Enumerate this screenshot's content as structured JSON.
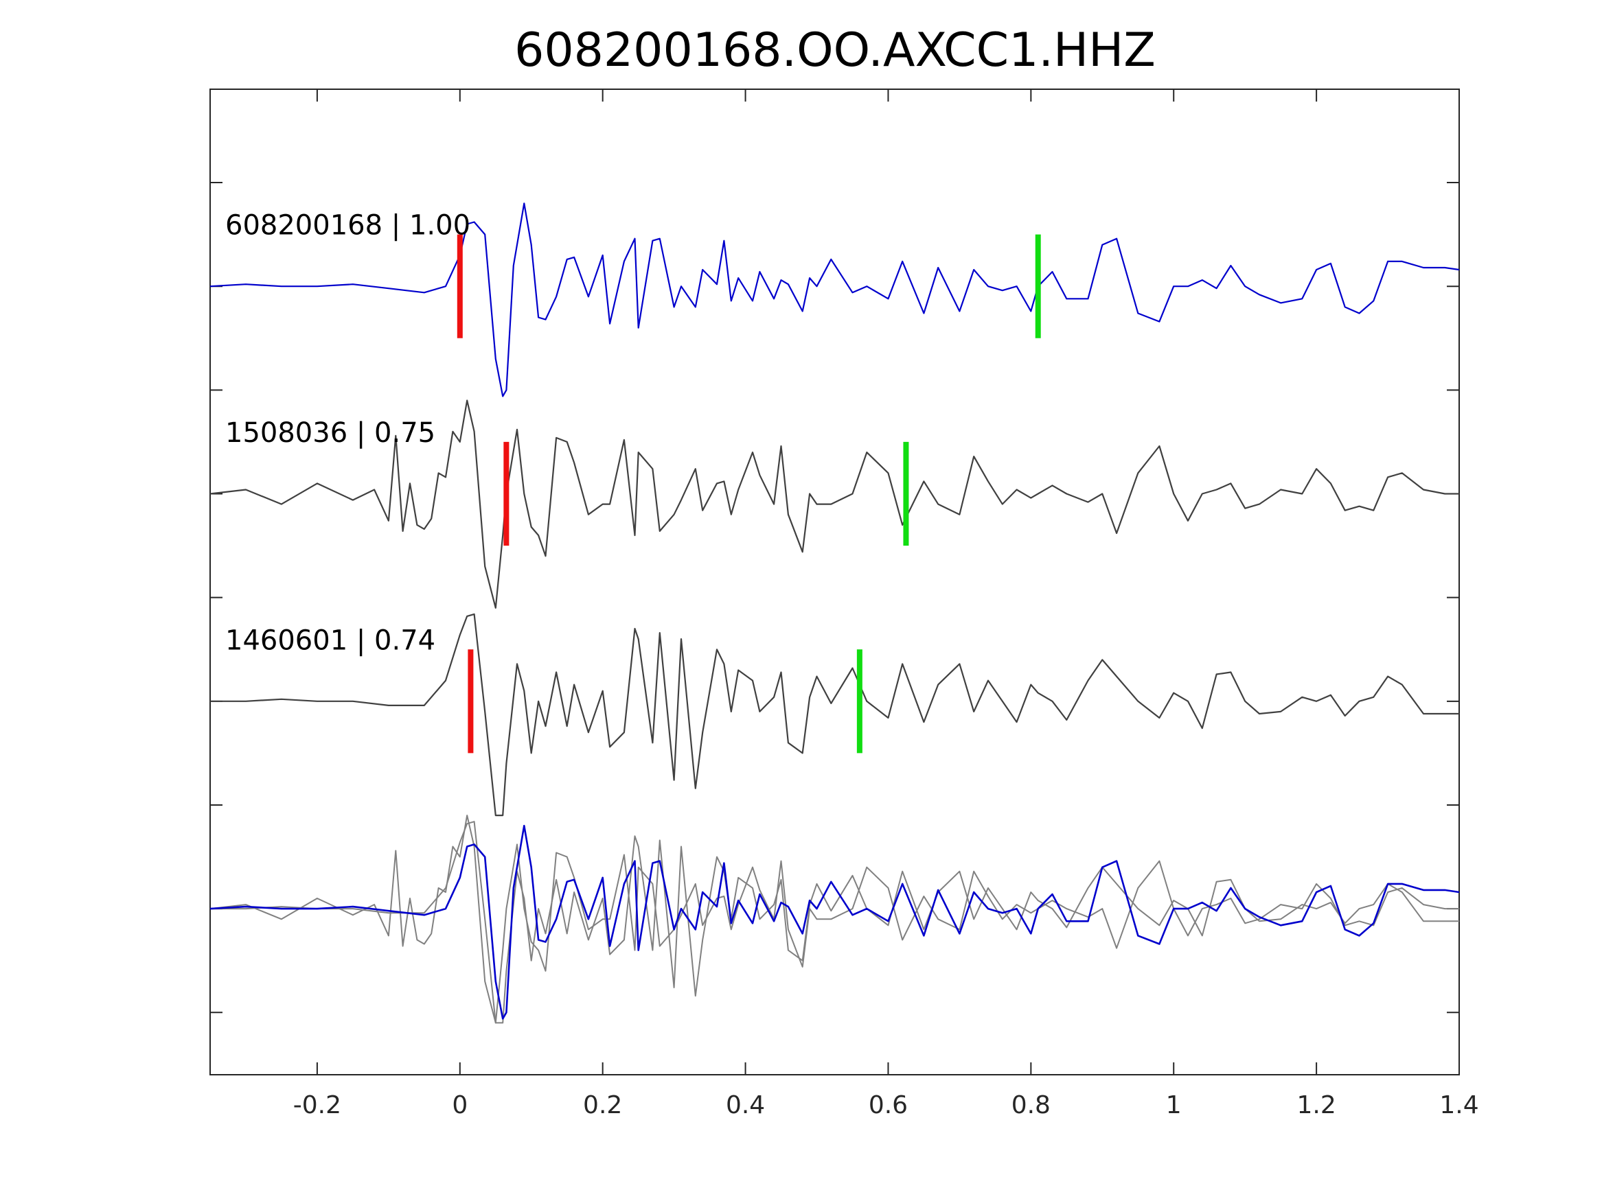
{
  "chart_data": {
    "type": "line",
    "title": "608200168.OO.AXCC1.HHZ",
    "xlabel": "",
    "ylabel": "",
    "xlim": [
      -0.35,
      1.4
    ],
    "xticks": [
      -0.2,
      0,
      0.2,
      0.4,
      0.6,
      0.8,
      1,
      1.2,
      1.4
    ],
    "xtick_labels": [
      "-0.2",
      "0",
      "0.2",
      "0.4",
      "0.6",
      "0.8",
      "1",
      "1.2",
      "1.4"
    ],
    "ylim": [
      -3.8,
      0.95
    ],
    "yticks": [
      0.5,
      0,
      -0.5,
      -1,
      -1.5,
      -2,
      -2.5,
      -3,
      -3.5
    ],
    "grid": false,
    "colors": {
      "master": "#0000cc",
      "trace": "#404040",
      "overlay_gray": "#808080",
      "pick_p": "#ee1111",
      "pick_s": "#11dd11",
      "axes": "#262626"
    },
    "series": [
      {
        "label": "608200168 | 1.00",
        "offset": 0,
        "color": "#0000cc",
        "p_pick": 0.0,
        "s_pick": 0.81,
        "x": [
          -0.35,
          -0.3,
          -0.25,
          -0.2,
          -0.15,
          -0.1,
          -0.05,
          -0.02,
          0.0,
          0.01,
          0.02,
          0.035,
          0.05,
          0.06,
          0.065,
          0.075,
          0.09,
          0.1,
          0.11,
          0.12,
          0.135,
          0.15,
          0.16,
          0.18,
          0.2,
          0.21,
          0.23,
          0.245,
          0.25,
          0.27,
          0.28,
          0.3,
          0.31,
          0.33,
          0.34,
          0.36,
          0.37,
          0.38,
          0.39,
          0.41,
          0.42,
          0.44,
          0.45,
          0.46,
          0.48,
          0.49,
          0.5,
          0.52,
          0.55,
          0.57,
          0.6,
          0.62,
          0.65,
          0.67,
          0.7,
          0.72,
          0.74,
          0.76,
          0.78,
          0.8,
          0.81,
          0.83,
          0.85,
          0.88,
          0.9,
          0.92,
          0.95,
          0.98,
          1.0,
          1.02,
          1.04,
          1.06,
          1.08,
          1.1,
          1.12,
          1.15,
          1.18,
          1.2,
          1.22,
          1.24,
          1.26,
          1.28,
          1.3,
          1.32,
          1.35,
          1.38,
          1.4
        ],
        "y": [
          0.0,
          0.01,
          0.0,
          0.0,
          0.01,
          -0.01,
          -0.03,
          0.0,
          0.15,
          0.3,
          0.31,
          0.25,
          -0.35,
          -0.53,
          -0.5,
          0.1,
          0.4,
          0.2,
          -0.15,
          -0.16,
          -0.05,
          0.13,
          0.14,
          -0.05,
          0.15,
          -0.18,
          0.12,
          0.23,
          -0.2,
          0.22,
          0.23,
          -0.1,
          0.0,
          -0.1,
          0.08,
          0.01,
          0.22,
          -0.07,
          0.04,
          -0.07,
          0.07,
          -0.06,
          0.03,
          0.01,
          -0.12,
          0.04,
          0.0,
          0.13,
          -0.03,
          0.0,
          -0.06,
          0.12,
          -0.13,
          0.09,
          -0.12,
          0.08,
          0.0,
          -0.02,
          0.0,
          -0.12,
          0.0,
          0.07,
          -0.06,
          -0.06,
          0.2,
          0.23,
          -0.13,
          -0.17,
          0.0,
          0.0,
          0.03,
          -0.01,
          0.1,
          0.0,
          -0.04,
          -0.08,
          -0.06,
          0.08,
          0.11,
          -0.1,
          -0.13,
          -0.07,
          0.12,
          0.12,
          0.09,
          0.09,
          0.08
        ]
      },
      {
        "label": "1508036 | 0.75",
        "offset": -1,
        "color": "#404040",
        "p_pick": 0.065,
        "s_pick": 0.625,
        "x": [
          -0.35,
          -0.3,
          -0.25,
          -0.2,
          -0.15,
          -0.12,
          -0.1,
          -0.09,
          -0.08,
          -0.07,
          -0.06,
          -0.05,
          -0.04,
          -0.03,
          -0.02,
          -0.01,
          0.0,
          0.01,
          0.02,
          0.035,
          0.05,
          0.06,
          0.065,
          0.08,
          0.09,
          0.1,
          0.11,
          0.12,
          0.135,
          0.15,
          0.16,
          0.18,
          0.2,
          0.21,
          0.23,
          0.245,
          0.25,
          0.27,
          0.28,
          0.3,
          0.31,
          0.33,
          0.34,
          0.36,
          0.37,
          0.38,
          0.39,
          0.41,
          0.42,
          0.44,
          0.45,
          0.46,
          0.48,
          0.49,
          0.5,
          0.52,
          0.55,
          0.57,
          0.6,
          0.62,
          0.65,
          0.67,
          0.7,
          0.72,
          0.74,
          0.76,
          0.78,
          0.8,
          0.81,
          0.83,
          0.85,
          0.88,
          0.9,
          0.92,
          0.95,
          0.98,
          1.0,
          1.02,
          1.04,
          1.06,
          1.08,
          1.1,
          1.12,
          1.15,
          1.18,
          1.2,
          1.22,
          1.24,
          1.26,
          1.28,
          1.3,
          1.32,
          1.35,
          1.38,
          1.4
        ],
        "y": [
          0.0,
          0.02,
          -0.05,
          0.05,
          -0.03,
          0.02,
          -0.13,
          0.28,
          -0.18,
          0.05,
          -0.15,
          -0.17,
          -0.12,
          0.1,
          0.08,
          0.3,
          0.25,
          0.45,
          0.3,
          -0.35,
          -0.55,
          -0.2,
          0.0,
          0.31,
          0.0,
          -0.16,
          -0.2,
          -0.3,
          0.27,
          0.25,
          0.15,
          -0.1,
          -0.05,
          -0.05,
          0.26,
          -0.2,
          0.2,
          0.12,
          -0.18,
          -0.1,
          -0.03,
          0.12,
          -0.08,
          0.05,
          0.06,
          -0.1,
          0.02,
          0.2,
          0.09,
          -0.05,
          0.23,
          -0.1,
          -0.28,
          0.0,
          -0.05,
          -0.05,
          0.0,
          0.2,
          0.1,
          -0.15,
          0.06,
          -0.05,
          -0.1,
          0.18,
          0.06,
          -0.05,
          0.02,
          -0.02,
          0.0,
          0.04,
          0.0,
          -0.04,
          0.0,
          -0.19,
          0.1,
          0.23,
          0.0,
          -0.13,
          0.0,
          0.02,
          0.05,
          -0.07,
          -0.05,
          0.02,
          0.0,
          0.12,
          0.05,
          -0.08,
          -0.06,
          -0.08,
          0.08,
          0.1,
          0.02,
          0.0,
          0.0
        ]
      },
      {
        "label": "1460601 | 0.74",
        "offset": -2,
        "color": "#404040",
        "p_pick": 0.015,
        "s_pick": 0.56,
        "x": [
          -0.35,
          -0.3,
          -0.25,
          -0.2,
          -0.15,
          -0.1,
          -0.05,
          -0.02,
          0.0,
          0.01,
          0.02,
          0.035,
          0.05,
          0.06,
          0.065,
          0.08,
          0.09,
          0.1,
          0.11,
          0.12,
          0.135,
          0.15,
          0.16,
          0.18,
          0.2,
          0.21,
          0.23,
          0.245,
          0.25,
          0.27,
          0.28,
          0.3,
          0.31,
          0.33,
          0.34,
          0.36,
          0.37,
          0.38,
          0.39,
          0.41,
          0.42,
          0.44,
          0.45,
          0.46,
          0.48,
          0.49,
          0.5,
          0.52,
          0.55,
          0.57,
          0.6,
          0.62,
          0.65,
          0.67,
          0.7,
          0.72,
          0.74,
          0.76,
          0.78,
          0.8,
          0.81,
          0.83,
          0.85,
          0.88,
          0.9,
          0.92,
          0.95,
          0.98,
          1.0,
          1.02,
          1.04,
          1.06,
          1.08,
          1.1,
          1.12,
          1.15,
          1.18,
          1.2,
          1.22,
          1.24,
          1.26,
          1.28,
          1.3,
          1.32,
          1.35,
          1.38,
          1.4
        ],
        "y": [
          0.0,
          0.0,
          0.01,
          0.0,
          0.0,
          -0.02,
          -0.02,
          0.1,
          0.32,
          0.41,
          0.42,
          -0.05,
          -0.55,
          -0.55,
          -0.3,
          0.18,
          0.05,
          -0.25,
          0.0,
          -0.12,
          0.14,
          -0.12,
          0.08,
          -0.15,
          0.05,
          -0.22,
          -0.15,
          0.35,
          0.3,
          -0.2,
          0.33,
          -0.38,
          0.3,
          -0.42,
          -0.15,
          0.25,
          0.18,
          -0.05,
          0.15,
          0.1,
          -0.05,
          0.02,
          0.14,
          -0.2,
          -0.25,
          0.02,
          0.12,
          -0.01,
          0.16,
          0.0,
          -0.08,
          0.18,
          -0.1,
          0.08,
          0.18,
          -0.05,
          0.1,
          0.0,
          -0.1,
          0.08,
          0.04,
          0.0,
          -0.09,
          0.1,
          0.2,
          0.12,
          0.0,
          -0.08,
          0.04,
          0.0,
          -0.13,
          0.13,
          0.14,
          0.0,
          -0.06,
          -0.05,
          0.02,
          0.0,
          0.03,
          -0.07,
          0.0,
          0.02,
          0.12,
          0.08,
          -0.06,
          -0.06,
          -0.06
        ]
      }
    ],
    "overlay": {
      "offset": -3,
      "description_series": [
        "608200168 | 1.00",
        "1508036 | 0.75",
        "1460601 | 0.74"
      ]
    }
  }
}
